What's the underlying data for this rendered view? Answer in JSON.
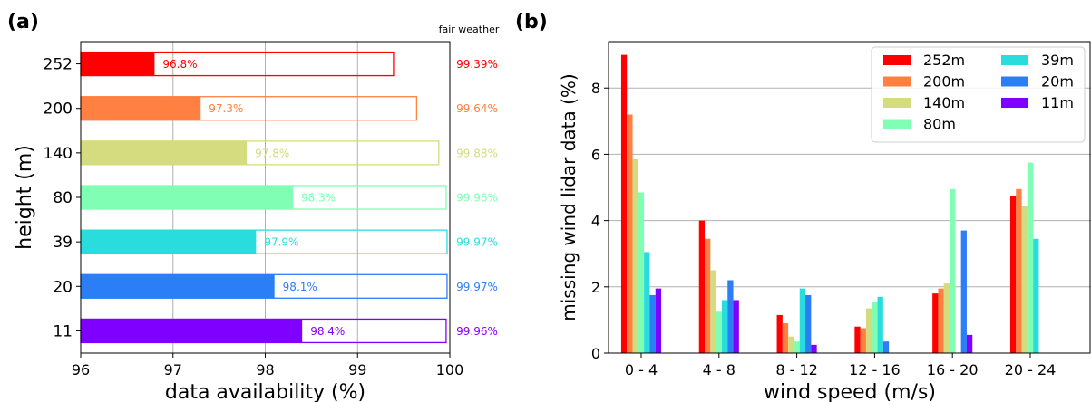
{
  "panels": {
    "a": {
      "label": "(a)"
    },
    "b": {
      "label": "(b)"
    }
  },
  "chart_data": [
    {
      "type": "bar",
      "orientation": "horizontal",
      "title": "",
      "xlabel": "data availability (%)",
      "ylabel": "height (m)",
      "xlim": [
        96,
        100
      ],
      "xticks": [
        "96",
        "97",
        "98",
        "99",
        "100"
      ],
      "categories": [
        "252",
        "200",
        "140",
        "80",
        "39",
        "20",
        "11"
      ],
      "series": [
        {
          "name": "",
          "values": [
            96.8,
            97.3,
            97.8,
            98.3,
            97.9,
            98.1,
            98.4
          ],
          "style": "filled"
        },
        {
          "name": "fair weather",
          "values": [
            99.39,
            99.64,
            99.88,
            99.96,
            99.97,
            99.97,
            99.96
          ],
          "style": "outline"
        }
      ],
      "bar_labels": [
        "96.8%",
        "97.3%",
        "97.8%",
        "98.3%",
        "97.9%",
        "98.1%",
        "98.4%"
      ],
      "side_labels": [
        "99.39%",
        "99.64%",
        "99.88%",
        "99.96%",
        "99.97%",
        "99.97%",
        "99.96%"
      ],
      "colors": [
        "#ff0000",
        "#ff8040",
        "#d4dc7f",
        "#80ffb4",
        "#2adddd",
        "#2c7ef7",
        "#8000ff"
      ],
      "grid": "x"
    },
    {
      "type": "bar",
      "orientation": "vertical",
      "title": "",
      "xlabel": "wind speed (m/s)",
      "ylabel": "missing wind lidar data (%)",
      "ylim": [
        0,
        9.4
      ],
      "yticks": [
        "0",
        "2",
        "4",
        "6",
        "8"
      ],
      "categories": [
        "0 - 4",
        "4 - 8",
        "8 - 12",
        "12 - 16",
        "16 - 20",
        "20 - 24"
      ],
      "series": [
        {
          "name": "252m",
          "color": "#ff0000",
          "values": [
            9.0,
            4.0,
            1.15,
            0.8,
            1.8,
            4.75
          ]
        },
        {
          "name": "200m",
          "color": "#ff8040",
          "values": [
            7.2,
            3.45,
            0.9,
            0.75,
            1.95,
            4.95
          ]
        },
        {
          "name": "140m",
          "color": "#d4dc7f",
          "values": [
            5.85,
            2.5,
            0.5,
            1.35,
            2.1,
            4.45
          ]
        },
        {
          "name": "80m",
          "color": "#80ffb4",
          "values": [
            4.85,
            1.25,
            0.35,
            1.55,
            4.95,
            5.75
          ]
        },
        {
          "name": "39m",
          "color": "#2adddd",
          "values": [
            3.05,
            1.6,
            1.95,
            1.7,
            0,
            3.45
          ]
        },
        {
          "name": "20m",
          "color": "#2c7ef7",
          "values": [
            1.75,
            2.2,
            1.75,
            0.35,
            3.7,
            0
          ]
        },
        {
          "name": "11m",
          "color": "#8000ff",
          "values": [
            1.95,
            1.6,
            0.25,
            0,
            0.55,
            0
          ]
        }
      ],
      "legend": "top-right",
      "grid": "y"
    }
  ]
}
